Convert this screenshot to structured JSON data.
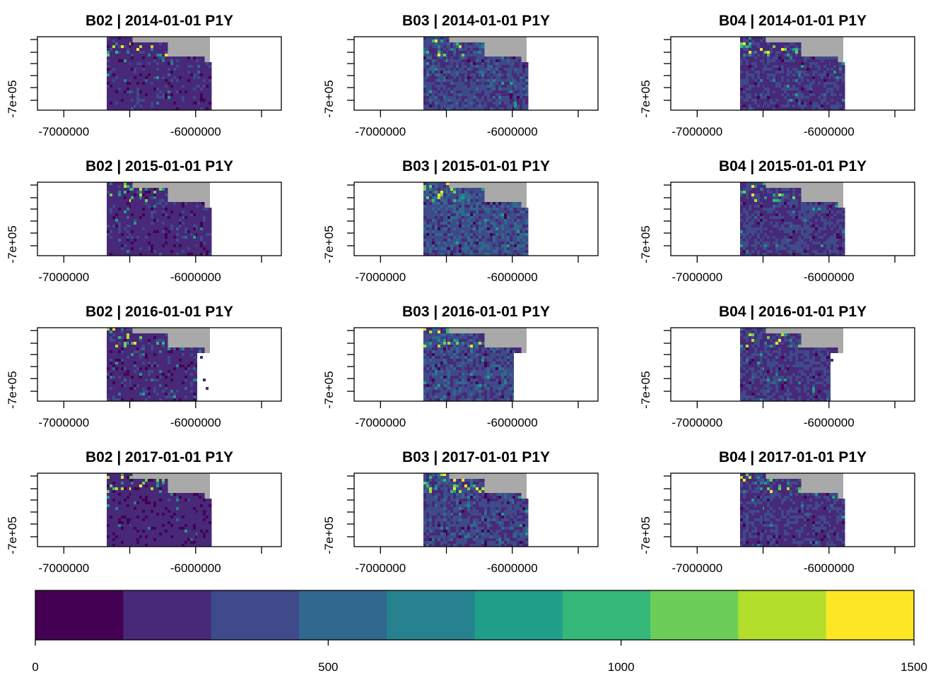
{
  "chart_data": {
    "type": "heatmap",
    "panels": [
      {
        "title": "B02 | 2014-01-01 P1Y",
        "band": "B02",
        "period": "2014-01-01 P1Y",
        "mean_value": 230,
        "blank_tile": false
      },
      {
        "title": "B03 | 2014-01-01 P1Y",
        "band": "B03",
        "period": "2014-01-01 P1Y",
        "mean_value": 340,
        "blank_tile": false
      },
      {
        "title": "B04 | 2014-01-01 P1Y",
        "band": "B04",
        "period": "2014-01-01 P1Y",
        "mean_value": 270,
        "blank_tile": false
      },
      {
        "title": "B02 | 2015-01-01 P1Y",
        "band": "B02",
        "period": "2015-01-01 P1Y",
        "mean_value": 230,
        "blank_tile": false
      },
      {
        "title": "B03 | 2015-01-01 P1Y",
        "band": "B03",
        "period": "2015-01-01 P1Y",
        "mean_value": 390,
        "blank_tile": false
      },
      {
        "title": "B04 | 2015-01-01 P1Y",
        "band": "B04",
        "period": "2015-01-01 P1Y",
        "mean_value": 300,
        "blank_tile": false
      },
      {
        "title": "B02 | 2016-01-01 P1Y",
        "band": "B02",
        "period": "2016-01-01 P1Y",
        "mean_value": 230,
        "blank_tile": true
      },
      {
        "title": "B03 | 2016-01-01 P1Y",
        "band": "B03",
        "period": "2016-01-01 P1Y",
        "mean_value": 360,
        "blank_tile": true
      },
      {
        "title": "B04 | 2016-01-01 P1Y",
        "band": "B04",
        "period": "2016-01-01 P1Y",
        "mean_value": 290,
        "blank_tile": true
      },
      {
        "title": "B02 | 2017-01-01 P1Y",
        "band": "B02",
        "period": "2017-01-01 P1Y",
        "mean_value": 210,
        "blank_tile": false
      },
      {
        "title": "B03 | 2017-01-01 P1Y",
        "band": "B03",
        "period": "2017-01-01 P1Y",
        "mean_value": 340,
        "blank_tile": false
      },
      {
        "title": "B04 | 2017-01-01 P1Y",
        "band": "B04",
        "period": "2017-01-01 P1Y",
        "mean_value": 270,
        "blank_tile": false
      }
    ],
    "x_ticks": [
      -7000000,
      -6500000,
      -6000000,
      -5500000
    ],
    "x_tick_labels": [
      "-7000000",
      "-6000000"
    ],
    "y_tick_label": "-7e+05",
    "colorbar": {
      "min": 0,
      "max": 1500,
      "breaks": [
        0,
        150,
        300,
        450,
        600,
        750,
        900,
        1050,
        1200,
        1350,
        1500
      ],
      "tick_values": [
        0,
        500,
        1000,
        1500
      ],
      "tick_labels": [
        "0",
        "500",
        "1000",
        "1500"
      ],
      "colors": [
        "#440154",
        "#482878",
        "#3E4A89",
        "#31688E",
        "#26828E",
        "#1F9E89",
        "#35B779",
        "#6DCD59",
        "#B4DE2C",
        "#FDE725"
      ]
    },
    "colors": {
      "nodata": "#A9A9A9",
      "background": "#FFFFFF",
      "blank_tile": "#FFFFFF"
    }
  }
}
